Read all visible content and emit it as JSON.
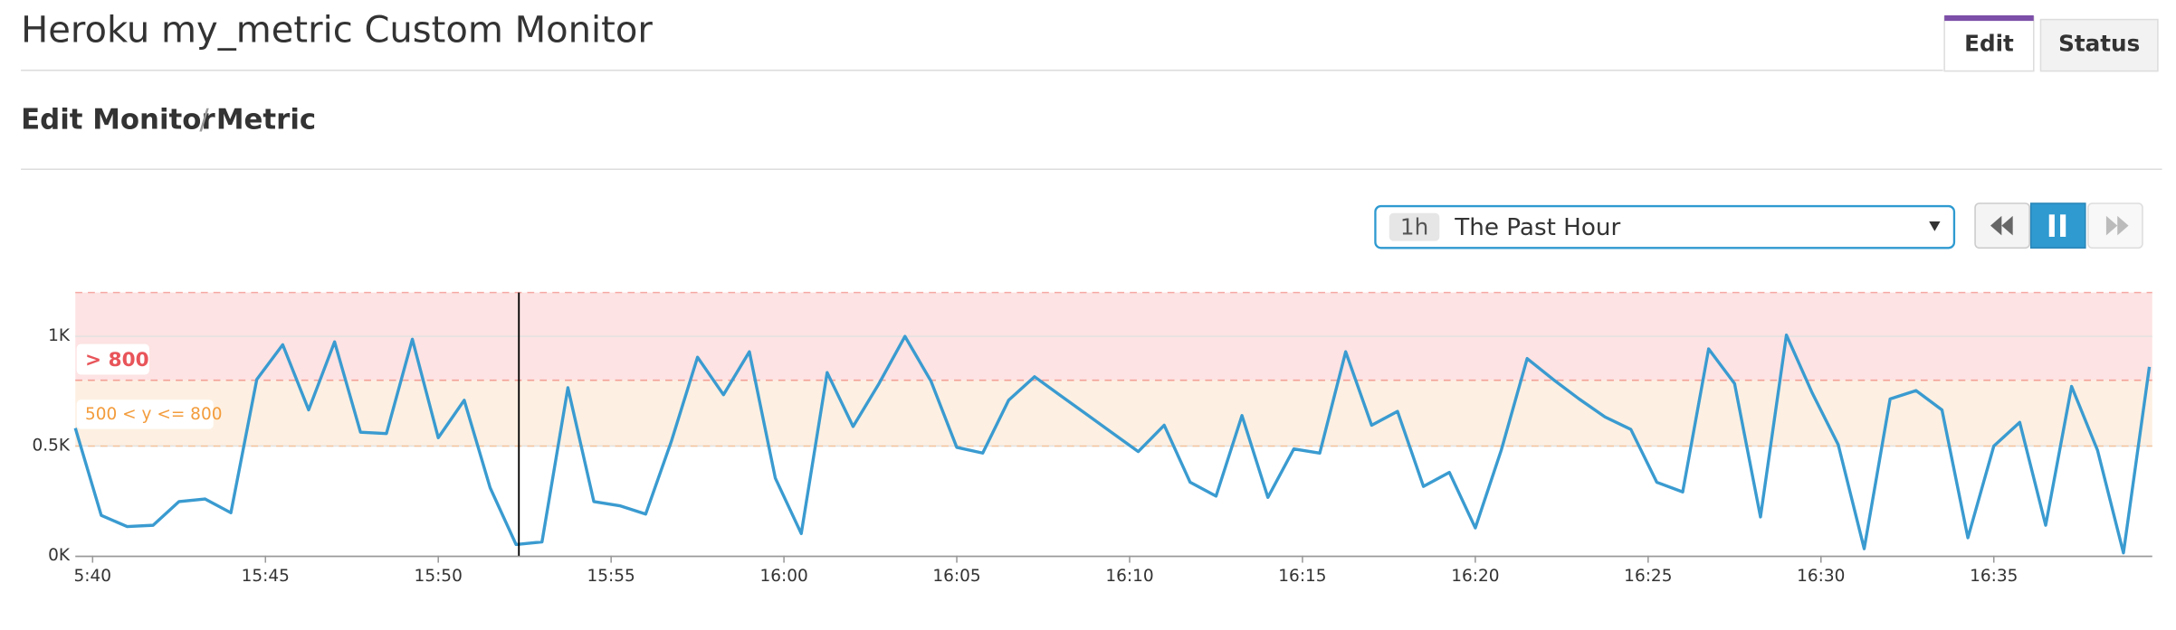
{
  "header": {
    "title": "Heroku my_metric Custom Monitor",
    "tabs": [
      "Edit",
      "Status"
    ]
  },
  "breadcrumb": {
    "parts": [
      "Edit Monitor",
      "/",
      "Metric"
    ]
  },
  "time_selector": {
    "short": "1h",
    "label": "The Past Hour"
  },
  "chart_data": {
    "type": "line",
    "x": [
      "15:39:30",
      "15:40:15",
      "15:41:00",
      "15:41:45",
      "15:42:30",
      "15:43:15",
      "15:44:00",
      "15:44:45",
      "15:45:30",
      "15:46:15",
      "15:47:00",
      "15:47:45",
      "15:48:30",
      "15:49:15",
      "15:50:00",
      "15:50:45",
      "15:51:30",
      "15:52:15",
      "15:53:00",
      "15:53:45",
      "15:54:30",
      "15:55:15",
      "15:56:00",
      "15:56:45",
      "15:57:30",
      "15:58:15",
      "15:59:00",
      "15:59:45",
      "16:00:30",
      "16:01:15",
      "16:02:00",
      "16:02:45",
      "16:03:30",
      "16:04:15",
      "16:05:00",
      "16:05:45",
      "16:06:30",
      "16:07:15",
      "16:08:00",
      "16:08:45",
      "16:09:30",
      "16:10:15",
      "16:11:00",
      "16:11:45",
      "16:12:30",
      "16:13:15",
      "16:14:00",
      "16:14:45",
      "16:15:30",
      "16:16:15",
      "16:17:00",
      "16:17:45",
      "16:18:30",
      "16:19:15",
      "16:20:00",
      "16:20:45",
      "16:21:30",
      "16:22:15",
      "16:23:00",
      "16:23:45",
      "16:24:30",
      "16:25:15",
      "16:26:00",
      "16:26:45",
      "16:27:30",
      "16:28:15",
      "16:29:00",
      "16:29:45",
      "16:30:30",
      "16:31:15",
      "16:32:00",
      "16:32:45",
      "16:33:30",
      "16:34:15",
      "16:35:00",
      "16:35:45",
      "16:36:30",
      "16:37:15",
      "16:38:00",
      "16:38:45",
      "16:39:30"
    ],
    "series": [
      {
        "name": "my_metric",
        "color": "#3a9bd0",
        "values": [
          582,
          184,
          133,
          139,
          247,
          259,
          196,
          804,
          962,
          665,
          975,
          563,
          557,
          987,
          538,
          709,
          310,
          51,
          63,
          766,
          247,
          228,
          190,
          525,
          905,
          734,
          930,
          354,
          101,
          835,
          589,
          785,
          1000,
          797,
          494,
          468,
          709,
          816,
          730,
          645,
          560,
          475,
          595,
          335,
          272,
          639,
          266,
          487,
          468,
          930,
          595,
          658,
          316,
          380,
          127,
          481,
          899,
          804,
          715,
          633,
          576,
          335,
          291,
          943,
          785,
          177,
          1006,
          741,
          506,
          32,
          715,
          753,
          665,
          82,
          500,
          608,
          139,
          772,
          481,
          13,
          861
        ]
      }
    ],
    "xlim": [
      "15:39:30",
      "16:39:35"
    ],
    "xticks": [
      {
        "value": "15:40",
        "label": "5:40"
      },
      "15:45",
      "15:50",
      "15:55",
      "16:00",
      "16:05",
      "16:10",
      "16:15",
      "16:20",
      "16:25",
      "16:30",
      "16:35"
    ],
    "ylim": [
      0,
      1200
    ],
    "yticks": [
      {
        "value": 0,
        "label": "0K"
      },
      {
        "value": 500,
        "label": "0.5K"
      },
      {
        "value": 1000,
        "label": "1K"
      }
    ],
    "grid": true,
    "critical": {
      "label": "> 800",
      "min": 800,
      "color": "#e8555a"
    },
    "warning": {
      "label": "500 < y <= 800",
      "min": 500,
      "max": 800,
      "color": "#f39c3c"
    }
  }
}
